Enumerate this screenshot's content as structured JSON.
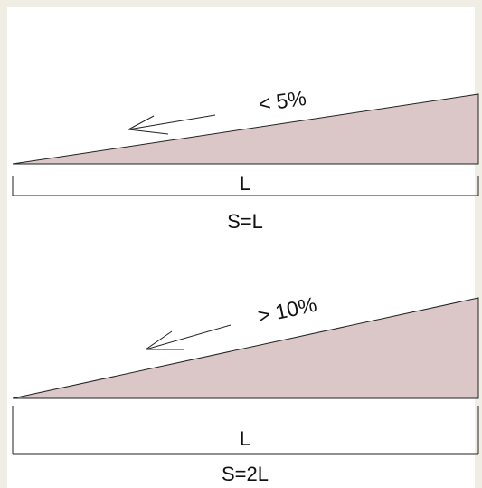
{
  "colors": {
    "page_border": "#f0ede4",
    "canvas": "#ffffff",
    "ramp_fill": "#dbc7c7",
    "stroke": "#222222"
  },
  "diagrams": [
    {
      "slope_label": "< 5%",
      "length_label": "L",
      "distance_label": "S=L",
      "arrow_direction": "down-left"
    },
    {
      "slope_label": "> 10%",
      "length_label": "L",
      "distance_label": "S=2L",
      "arrow_direction": "down-left"
    }
  ]
}
